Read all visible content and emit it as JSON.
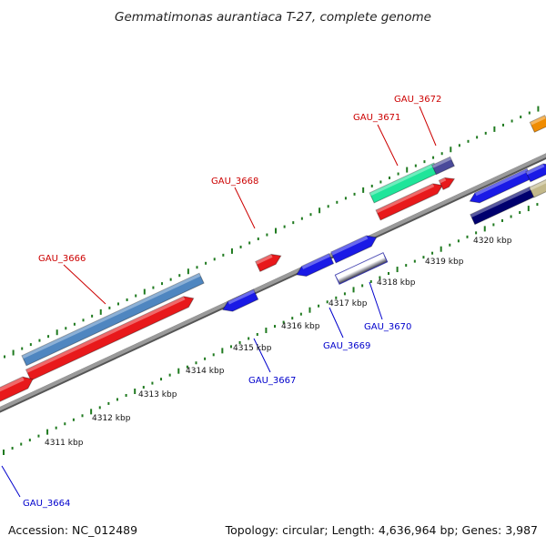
{
  "title": "Gemmatimonas aurantiaca T-27, complete genome",
  "footer": {
    "accession": "Accession: NC_012489",
    "summary": "Topology: circular; Length: 4,636,964 bp; Genes: 3,987"
  },
  "colors": {
    "backbone": "#8e8e8e",
    "tick": "#1f7a1f",
    "forward_label": "#cc0000",
    "reverse_label": "#0000cc"
  },
  "scale_labels": [
    "4311 kbp",
    "4312 kbp",
    "4313 kbp",
    "4314 kbp",
    "4315 kbp",
    "4316 kbp",
    "4317 kbp",
    "4318 kbp",
    "4319 kbp",
    "4320 kbp"
  ],
  "gene_labels": {
    "gau_3666": "GAU_3666",
    "gau_3668": "GAU_3668",
    "gau_3671": "GAU_3671",
    "gau_3672": "GAU_3672",
    "gau_3664": "GAU_3664",
    "gau_3667": "GAU_3667",
    "gau_3669": "GAU_3669",
    "gau_3670": "GAU_3670"
  }
}
